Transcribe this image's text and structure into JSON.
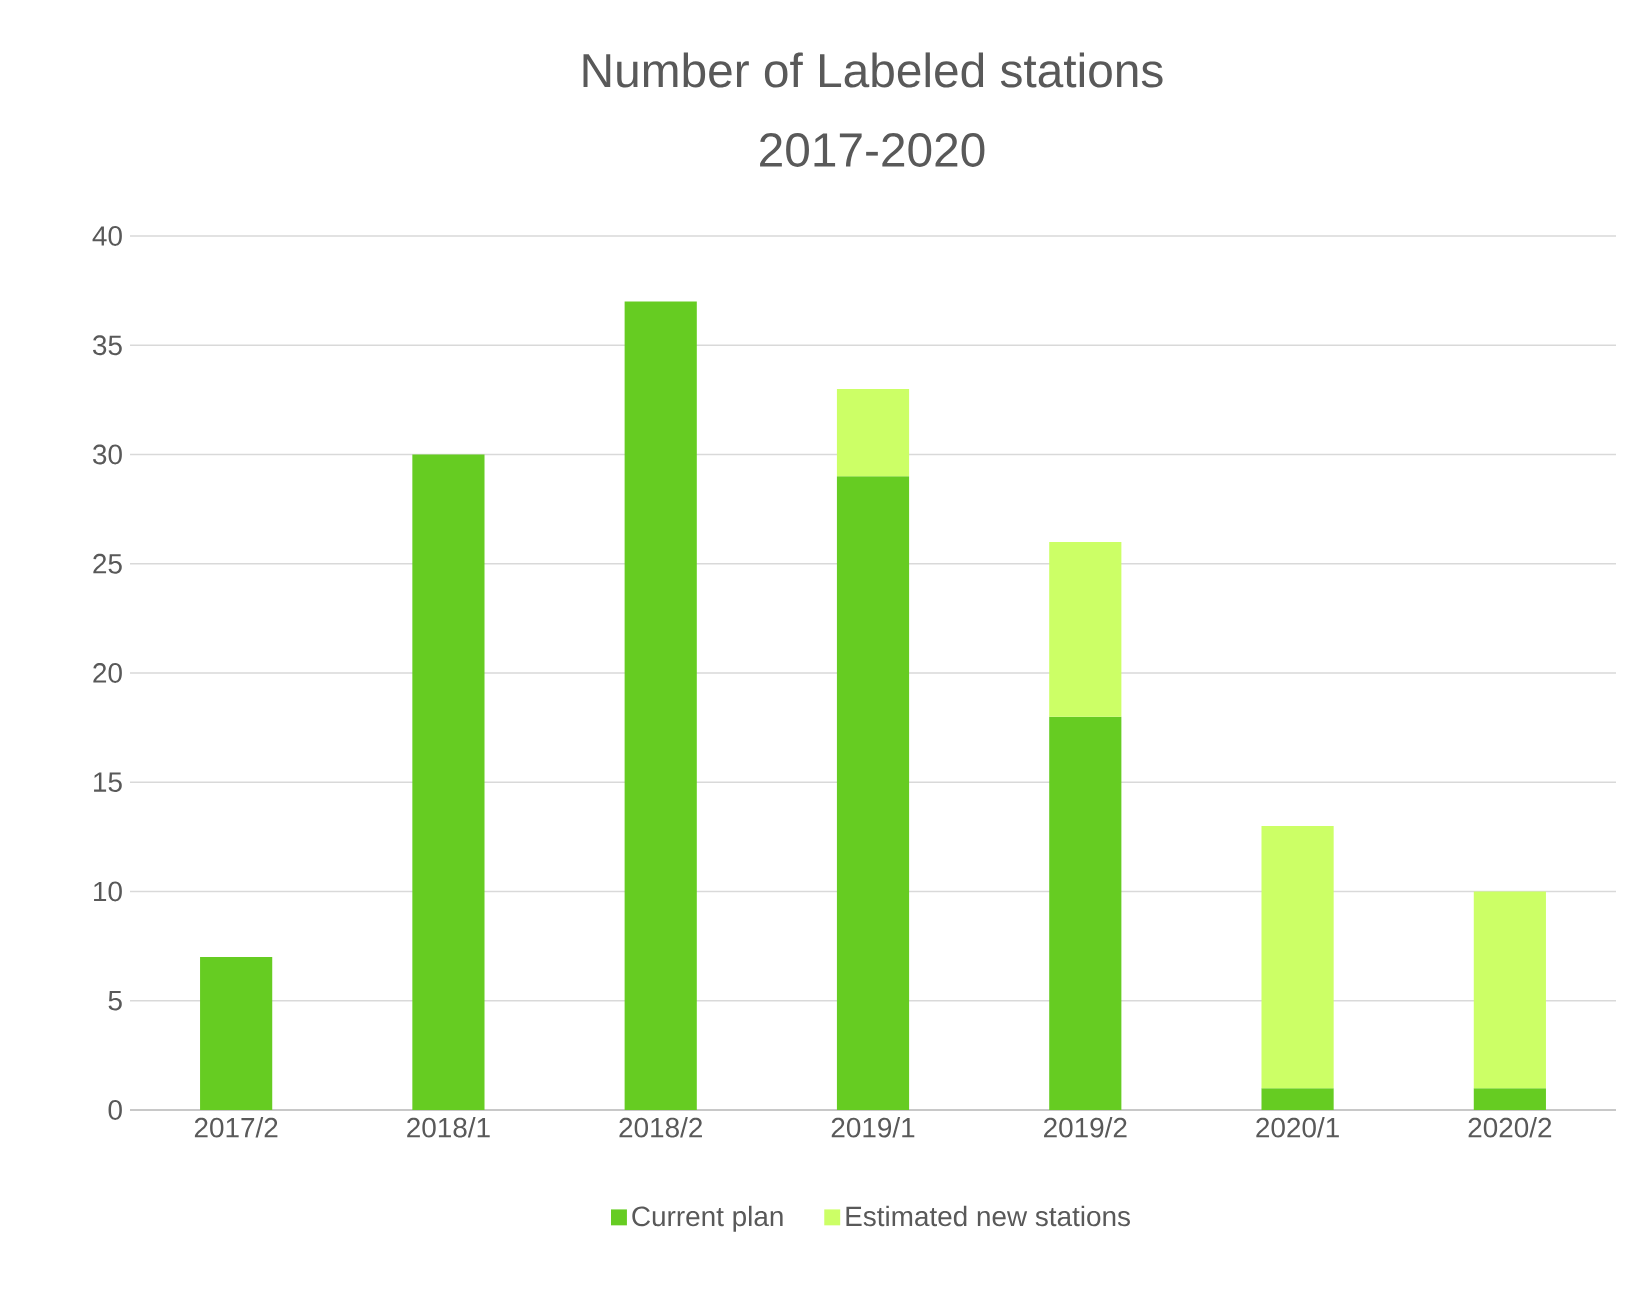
{
  "chart_data": {
    "type": "bar",
    "title": "Number of Labeled stations",
    "subtitle": "2017-2020",
    "categories": [
      "2017/2",
      "2018/1",
      "2018/2",
      "2019/1",
      "2019/2",
      "2020/1",
      "2020/2"
    ],
    "stacked": true,
    "series": [
      {
        "name": "Current plan",
        "color": "#66cc22",
        "values": [
          7,
          30,
          37,
          29,
          18,
          1,
          1
        ]
      },
      {
        "name": "Estimated new stations",
        "color": "#ccff66",
        "values": [
          null,
          null,
          null,
          4,
          8,
          12,
          9
        ]
      }
    ],
    "ylim": [
      0,
      40
    ],
    "yticks": [
      0,
      5,
      10,
      15,
      20,
      25,
      30,
      35,
      40
    ],
    "grid": "y",
    "legend": "bottom"
  }
}
